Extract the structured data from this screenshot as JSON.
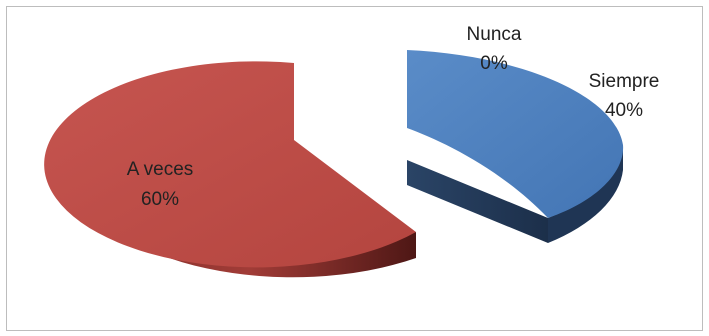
{
  "chart_data": {
    "type": "pie",
    "style": "3d-exploded",
    "title": "",
    "categories": [
      "Siempre",
      "Nunca",
      "A veces"
    ],
    "values": [
      40,
      0,
      60
    ],
    "labels": [
      "40%",
      "0%",
      "60%"
    ],
    "colors": {
      "Siempre": "#4f81bd",
      "Nunca": "#9bbb59",
      "A veces": "#c0504d"
    },
    "legend": "none"
  }
}
